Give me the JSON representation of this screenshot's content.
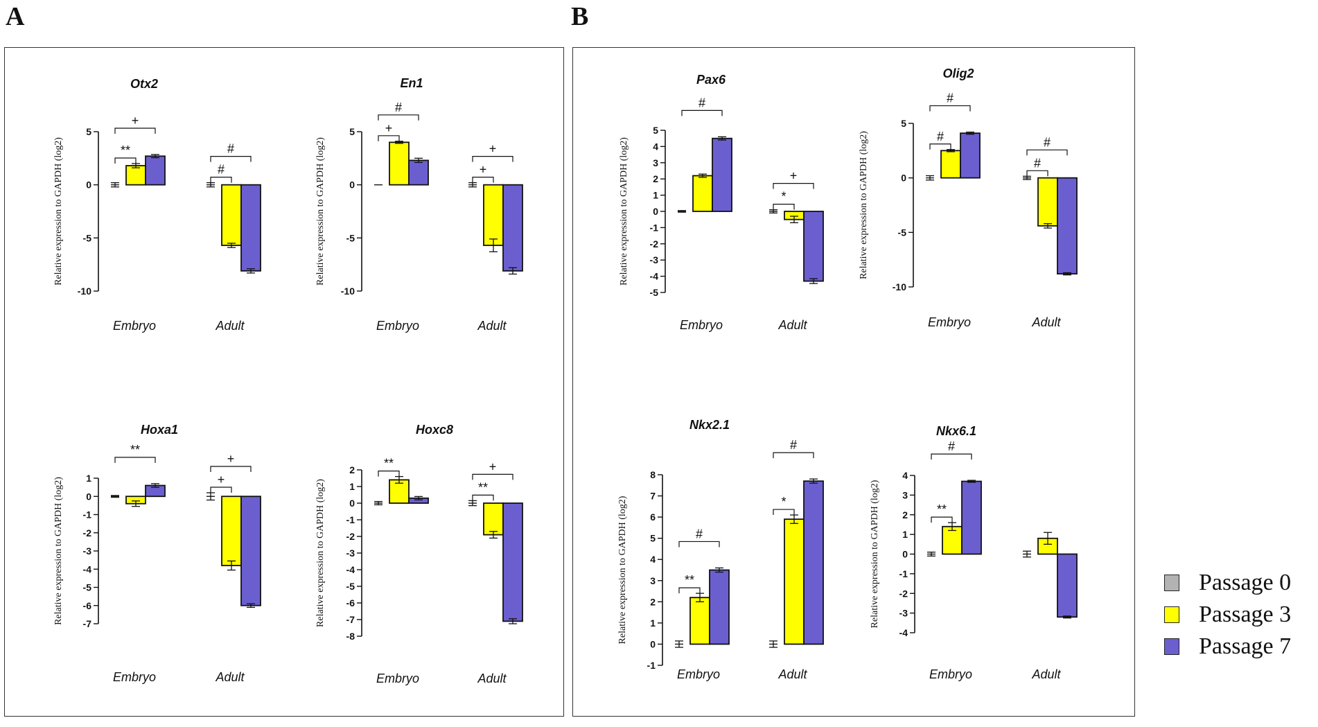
{
  "panels": [
    {
      "letter": "A"
    },
    {
      "letter": "B"
    }
  ],
  "legend": [
    {
      "label": "Passage 0",
      "color": "#b3b3b3"
    },
    {
      "label": "Passage 3",
      "color": "#ffff00"
    },
    {
      "label": "Passage 7",
      "color": "#6b5fd0"
    }
  ],
  "chart_data": [
    {
      "type": "bar",
      "panel": "A",
      "title": "Otx2",
      "ylabel": "Relative expression to GAPDH (log2)",
      "ylim": [
        -10,
        5
      ],
      "yticks": [
        5,
        0,
        -5,
        -10
      ],
      "categories": [
        "Embryo",
        "Adult"
      ],
      "series": [
        {
          "name": "Passage 0",
          "values": [
            0,
            0
          ],
          "errors": [
            0.2,
            0.2
          ]
        },
        {
          "name": "Passage 3",
          "values": [
            1.8,
            -5.7
          ],
          "errors": [
            0.2,
            0.2
          ]
        },
        {
          "name": "Passage 7",
          "values": [
            2.7,
            -8.1
          ],
          "errors": [
            0.15,
            0.2
          ]
        }
      ],
      "annotations": [
        {
          "label": "**",
          "group": 0,
          "from": 0,
          "to": 1,
          "level": 1
        },
        {
          "label": "+",
          "group": 0,
          "from": 0,
          "to": 2,
          "level": 2
        },
        {
          "label": "#",
          "group": 1,
          "from": 0,
          "to": 1,
          "level": 1
        },
        {
          "label": "#",
          "group": 1,
          "from": 0,
          "to": 2,
          "level": 2
        }
      ]
    },
    {
      "type": "bar",
      "panel": "A",
      "title": "En1",
      "ylabel": "Relative expression to GAPDH (log2)",
      "ylim": [
        -10,
        5
      ],
      "yticks": [
        5,
        0,
        -5,
        -10
      ],
      "categories": [
        "Embryo",
        "Adult"
      ],
      "series": [
        {
          "name": "Passage 0",
          "values": [
            0,
            0
          ],
          "errors": [
            0,
            0.2
          ]
        },
        {
          "name": "Passage 3",
          "values": [
            4.0,
            -5.7
          ],
          "errors": [
            0.1,
            0.6
          ]
        },
        {
          "name": "Passage 7",
          "values": [
            2.3,
            -8.1
          ],
          "errors": [
            0.2,
            0.3
          ]
        }
      ],
      "annotations": [
        {
          "label": "+",
          "group": 0,
          "from": 0,
          "to": 1,
          "level": 1
        },
        {
          "label": "#",
          "group": 0,
          "from": 0,
          "to": 2,
          "level": 2
        },
        {
          "label": "+",
          "group": 1,
          "from": 0,
          "to": 1,
          "level": 1
        },
        {
          "label": "+",
          "group": 1,
          "from": 0,
          "to": 2,
          "level": 2
        }
      ]
    },
    {
      "type": "bar",
      "panel": "A",
      "title": "Hoxa1",
      "ylabel": "Relative expression to GAPDH (log2)",
      "ylim": [
        -7,
        1
      ],
      "yticks": [
        1,
        0,
        -1,
        -2,
        -3,
        -4,
        -5,
        -6,
        -7
      ],
      "categories": [
        "Embryo",
        "Adult"
      ],
      "series": [
        {
          "name": "Passage 0",
          "values": [
            0,
            0
          ],
          "errors": [
            0.05,
            0.2
          ]
        },
        {
          "name": "Passage 3",
          "values": [
            -0.4,
            -3.8
          ],
          "errors": [
            0.15,
            0.25
          ]
        },
        {
          "name": "Passage 7",
          "values": [
            0.6,
            -6.0
          ],
          "errors": [
            0.1,
            0.1
          ]
        }
      ],
      "annotations": [
        {
          "label": "**",
          "group": 0,
          "from": 0,
          "to": 2,
          "level": 2
        },
        {
          "label": "+",
          "group": 1,
          "from": 0,
          "to": 1,
          "level": 1
        },
        {
          "label": "+",
          "group": 1,
          "from": 0,
          "to": 2,
          "level": 2
        }
      ]
    },
    {
      "type": "bar",
      "panel": "A",
      "title": "Hoxc8",
      "ylabel": "Relative expression to GAPDH  (log2)",
      "ylim": [
        -8,
        2
      ],
      "yticks": [
        2,
        1,
        0,
        -1,
        -2,
        -3,
        -4,
        -5,
        -6,
        -7,
        -8
      ],
      "categories": [
        "Embryo",
        "Adult"
      ],
      "series": [
        {
          "name": "Passage 0",
          "values": [
            0,
            0
          ],
          "errors": [
            0.1,
            0.15
          ]
        },
        {
          "name": "Passage 3",
          "values": [
            1.4,
            -1.9
          ],
          "errors": [
            0.2,
            0.2
          ]
        },
        {
          "name": "Passage 7",
          "values": [
            0.3,
            -7.1
          ],
          "errors": [
            0.1,
            0.15
          ]
        }
      ],
      "annotations": [
        {
          "label": "**",
          "group": 0,
          "from": 0,
          "to": 1,
          "level": 1
        },
        {
          "label": "**",
          "group": 1,
          "from": 0,
          "to": 1,
          "level": 1
        },
        {
          "label": "+",
          "group": 1,
          "from": 0,
          "to": 2,
          "level": 2
        }
      ]
    },
    {
      "type": "bar",
      "panel": "B",
      "title": "Pax6",
      "ylabel": "Relative expression to GAPDH (log2)",
      "ylim": [
        -5,
        5
      ],
      "yticks": [
        5,
        4,
        3,
        2,
        1,
        0,
        -1,
        -2,
        -3,
        -4,
        -5
      ],
      "categories": [
        "Embryo",
        "Adult"
      ],
      "series": [
        {
          "name": "Passage 0",
          "values": [
            0,
            0
          ],
          "errors": [
            0.05,
            0.1
          ]
        },
        {
          "name": "Passage 3",
          "values": [
            2.2,
            -0.5
          ],
          "errors": [
            0.1,
            0.2
          ]
        },
        {
          "name": "Passage 7",
          "values": [
            4.5,
            -4.3
          ],
          "errors": [
            0.1,
            0.15
          ]
        }
      ],
      "annotations": [
        {
          "label": "#",
          "group": 0,
          "from": 0,
          "to": 2,
          "level": 2
        },
        {
          "label": "*",
          "group": 1,
          "from": 0,
          "to": 1,
          "level": 1
        },
        {
          "label": "+",
          "group": 1,
          "from": 0,
          "to": 2,
          "level": 2
        }
      ]
    },
    {
      "type": "bar",
      "panel": "B",
      "title": "Olig2",
      "ylabel": "Relative expression to GAPDH (log2)",
      "ylim": [
        -10,
        5
      ],
      "yticks": [
        5,
        0,
        -5,
        -10
      ],
      "categories": [
        "Embryo",
        "Adult"
      ],
      "series": [
        {
          "name": "Passage 0",
          "values": [
            0,
            0
          ],
          "errors": [
            0.2,
            0.15
          ]
        },
        {
          "name": "Passage 3",
          "values": [
            2.5,
            -4.4
          ],
          "errors": [
            0.1,
            0.2
          ]
        },
        {
          "name": "Passage 7",
          "values": [
            4.1,
            -8.8
          ],
          "errors": [
            0.1,
            0.1
          ]
        }
      ],
      "annotations": [
        {
          "label": "#",
          "group": 0,
          "from": 0,
          "to": 1,
          "level": 1
        },
        {
          "label": "#",
          "group": 0,
          "from": 0,
          "to": 2,
          "level": 2
        },
        {
          "label": "#",
          "group": 1,
          "from": 0,
          "to": 1,
          "level": 1
        },
        {
          "label": "#",
          "group": 1,
          "from": 0,
          "to": 2,
          "level": 2
        }
      ]
    },
    {
      "type": "bar",
      "panel": "B",
      "title": "Nkx2.1",
      "ylabel": "Relative expression to GAPDH (log2)",
      "ylim": [
        -1,
        8
      ],
      "yticks": [
        8,
        7,
        6,
        5,
        4,
        3,
        2,
        1,
        0,
        -1
      ],
      "categories": [
        "Embryo",
        "Adult"
      ],
      "series": [
        {
          "name": "Passage 0",
          "values": [
            0,
            0
          ],
          "errors": [
            0.15,
            0.15
          ]
        },
        {
          "name": "Passage 3",
          "values": [
            2.2,
            5.9
          ],
          "errors": [
            0.2,
            0.2
          ]
        },
        {
          "name": "Passage 7",
          "values": [
            3.5,
            7.7
          ],
          "errors": [
            0.1,
            0.1
          ]
        }
      ],
      "annotations": [
        {
          "label": "**",
          "group": 0,
          "from": 0,
          "to": 1,
          "level": 1
        },
        {
          "label": "#",
          "group": 0,
          "from": 0,
          "to": 2,
          "level": 2
        },
        {
          "label": "*",
          "group": 1,
          "from": 0,
          "to": 1,
          "level": 1
        },
        {
          "label": "#",
          "group": 1,
          "from": 0,
          "to": 2,
          "level": 2
        }
      ]
    },
    {
      "type": "bar",
      "panel": "B",
      "title": "Nkx6.1",
      "ylabel": "Relative expression to GAPDH (log2)",
      "ylim": [
        -4,
        4
      ],
      "yticks": [
        4,
        3,
        2,
        1,
        0,
        -1,
        -2,
        -3,
        -4
      ],
      "categories": [
        "Embryo",
        "Adult"
      ],
      "series": [
        {
          "name": "Passage 0",
          "values": [
            0,
            0
          ],
          "errors": [
            0.1,
            0.15
          ]
        },
        {
          "name": "Passage 3",
          "values": [
            1.4,
            0.8
          ],
          "errors": [
            0.2,
            0.3
          ]
        },
        {
          "name": "Passage 7",
          "values": [
            3.7,
            -3.2
          ],
          "errors": [
            0.05,
            0.05
          ]
        }
      ],
      "annotations": [
        {
          "label": "**",
          "group": 0,
          "from": 0,
          "to": 1,
          "level": 1
        },
        {
          "label": "#",
          "group": 0,
          "from": 0,
          "to": 2,
          "level": 2
        }
      ]
    }
  ]
}
